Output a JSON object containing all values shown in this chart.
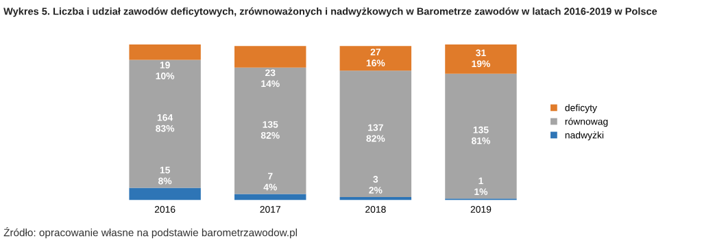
{
  "chart_data": {
    "type": "bar",
    "stacked": true,
    "title": "Wykres 5. Liczba i udział zawodów deficytowych, zrównoważonych i nadwyżkowych w Barometrze zawodów w latach 2016-2019 w Polsce",
    "categories": [
      "2016",
      "2017",
      "2018",
      "2019"
    ],
    "series": [
      {
        "name": "nadwyżki",
        "color": "#2e75b6",
        "values": [
          8,
          4,
          2,
          1
        ],
        "value_labels": [
          "15\n8%",
          "7\n4%",
          "3\n2%",
          "1\n1%"
        ]
      },
      {
        "name": "równowag",
        "color": "#a5a5a5",
        "values": [
          83,
          82,
          82,
          81
        ],
        "value_labels": [
          "164\n83%",
          "135\n82%",
          "137\n82%",
          "135\n81%"
        ]
      },
      {
        "name": "deficyty",
        "color": "#e07b2a",
        "values": [
          10,
          14,
          16,
          19
        ],
        "value_labels": [
          "19\n10%",
          "23\n14%",
          "27\n16%",
          "31\n19%"
        ]
      }
    ],
    "legend": "right",
    "annotations": [
      "Źródło: opracowanie własne na podstawie barometrzawodow.pl"
    ]
  }
}
